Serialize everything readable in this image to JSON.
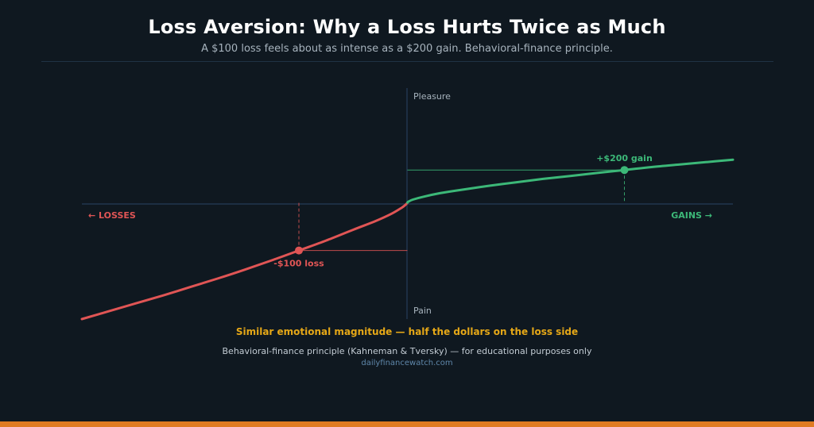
{
  "title": "Loss Aversion: Why a Loss Hurts Twice as Much",
  "subtitle": "A $100 loss feels about as intense as a $200 gain. Behavioral-finance principle.",
  "caption": "Similar emotional magnitude —  half the dollars on the loss side",
  "footnote": "Behavioral-finance principle (Kahneman & Tversky) — for educational purposes only",
  "source": "dailyfinancewatch.com",
  "colors": {
    "background": "#0f1820",
    "gain": "#3cb878",
    "loss": "#e05555",
    "axis": "#2a4566",
    "caption": "#e6a817",
    "accent_bar": "#e07b22"
  },
  "chart_data": {
    "type": "line",
    "title": "",
    "xlabel": "",
    "ylabel": "",
    "axis_labels": {
      "y_top": "Pleasure",
      "y_bottom": "Pain",
      "x_left": "← LOSSES",
      "x_right": "GAINS →"
    },
    "series": [
      {
        "kind": "loss",
        "x": [
          -300,
          -275,
          -250,
          -225,
          -200,
          -175,
          -150,
          -125,
          -100,
          -75,
          -50,
          -30,
          -15,
          -5,
          -1,
          0
        ],
        "y": [
          -236,
          -220,
          -204,
          -188,
          -171,
          -154,
          -136,
          -117,
          -97,
          -77,
          -55,
          -38,
          -23,
          -10,
          -3,
          0
        ]
      },
      {
        "kind": "gain",
        "x": [
          0,
          1,
          5,
          15,
          30,
          50,
          75,
          100,
          125,
          150,
          175,
          200,
          225,
          250,
          275,
          300
        ],
        "y": [
          0,
          2,
          6,
          12,
          19,
          26,
          34,
          41,
          48,
          54,
          60,
          66,
          72,
          77,
          82,
          87
        ]
      }
    ],
    "markers": [
      {
        "x": 200,
        "y": 66,
        "label": "+$200 gain",
        "kind": "gain"
      },
      {
        "x": -100,
        "y": -97,
        "label": "-$100 loss",
        "kind": "loss"
      }
    ],
    "xlim": [
      -300,
      300
    ],
    "ylim": [
      -236,
      232
    ],
    "grid": false
  }
}
